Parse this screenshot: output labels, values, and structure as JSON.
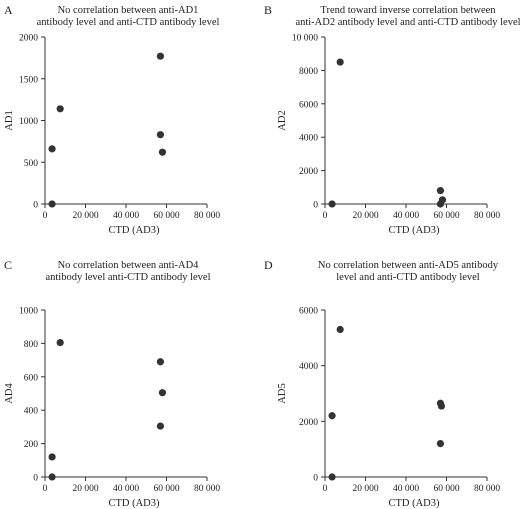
{
  "chart_data": [
    {
      "letter": "A",
      "type": "scatter",
      "title_lines": [
        "No correlation between anti-AD1",
        "antibody level and anti-CTD antibody level"
      ],
      "xlabel": "CTD (AD3)",
      "ylabel": "AD1",
      "xlim": [
        0,
        80000
      ],
      "ylim": [
        0,
        2000
      ],
      "x_ticks": [
        0,
        20000,
        40000,
        60000,
        80000
      ],
      "x_tick_labels": [
        "0",
        "20 000",
        "40 000",
        "60 000",
        "80 000"
      ],
      "y_ticks": [
        0,
        500,
        1000,
        1500,
        2000
      ],
      "y_tick_labels": [
        "0",
        "500",
        "1000",
        "1500",
        "2000"
      ],
      "points": [
        {
          "x": 3500,
          "y": 0
        },
        {
          "x": 3500,
          "y": 660
        },
        {
          "x": 7500,
          "y": 1140
        },
        {
          "x": 57000,
          "y": 1770
        },
        {
          "x": 57000,
          "y": 830
        },
        {
          "x": 58000,
          "y": 620
        }
      ]
    },
    {
      "letter": "B",
      "type": "scatter",
      "title_lines": [
        "Trend toward inverse correlation between",
        "anti-AD2 antibody level and anti-CTD antibody level"
      ],
      "xlabel": "CTD (AD3)",
      "ylabel": "AD2",
      "xlim": [
        0,
        80000
      ],
      "ylim": [
        0,
        10000
      ],
      "x_ticks": [
        0,
        20000,
        40000,
        60000,
        80000
      ],
      "x_tick_labels": [
        "0",
        "20 000",
        "40 000",
        "60 000",
        "80 000"
      ],
      "y_ticks": [
        0,
        2000,
        4000,
        6000,
        8000,
        10000
      ],
      "y_tick_labels": [
        "0",
        "2000",
        "4000",
        "6000",
        "8000",
        "10 000"
      ],
      "points": [
        {
          "x": 3500,
          "y": 0
        },
        {
          "x": 7500,
          "y": 8500
        },
        {
          "x": 57000,
          "y": 800
        },
        {
          "x": 58000,
          "y": 250
        },
        {
          "x": 57000,
          "y": 0
        }
      ]
    },
    {
      "letter": "C",
      "type": "scatter",
      "title_lines": [
        "No correlation between anti-AD4",
        "antibody level anti-CTD antibody level"
      ],
      "xlabel": "CTD (AD3)",
      "ylabel": "AD4",
      "xlim": [
        0,
        80000
      ],
      "ylim": [
        0,
        1000
      ],
      "x_ticks": [
        0,
        20000,
        40000,
        60000,
        80000
      ],
      "x_tick_labels": [
        "0",
        "20 000",
        "40 000",
        "60 000",
        "80 000"
      ],
      "y_ticks": [
        0,
        200,
        400,
        600,
        800,
        1000
      ],
      "y_tick_labels": [
        "0",
        "200",
        "400",
        "600",
        "800",
        "1000"
      ],
      "points": [
        {
          "x": 3500,
          "y": 0
        },
        {
          "x": 3500,
          "y": 120
        },
        {
          "x": 7500,
          "y": 805
        },
        {
          "x": 57000,
          "y": 690
        },
        {
          "x": 58000,
          "y": 505
        },
        {
          "x": 57000,
          "y": 305
        }
      ]
    },
    {
      "letter": "D",
      "type": "scatter",
      "title_lines": [
        "No correlation between anti-AD5 antibody",
        "level and anti-CTD antibody level"
      ],
      "xlabel": "CTD (AD3)",
      "ylabel": "AD5",
      "xlim": [
        0,
        80000
      ],
      "ylim": [
        0,
        6000
      ],
      "x_ticks": [
        0,
        20000,
        40000,
        60000,
        80000
      ],
      "x_tick_labels": [
        "0",
        "20 000",
        "40 000",
        "60 000",
        "80 000"
      ],
      "y_ticks": [
        0,
        2000,
        4000,
        6000
      ],
      "y_tick_labels": [
        "0",
        "2000",
        "4000",
        "6000"
      ],
      "points": [
        {
          "x": 3500,
          "y": 0
        },
        {
          "x": 3500,
          "y": 2200
        },
        {
          "x": 7500,
          "y": 5300
        },
        {
          "x": 57000,
          "y": 2650
        },
        {
          "x": 57500,
          "y": 2550
        },
        {
          "x": 57000,
          "y": 1200
        }
      ]
    }
  ]
}
